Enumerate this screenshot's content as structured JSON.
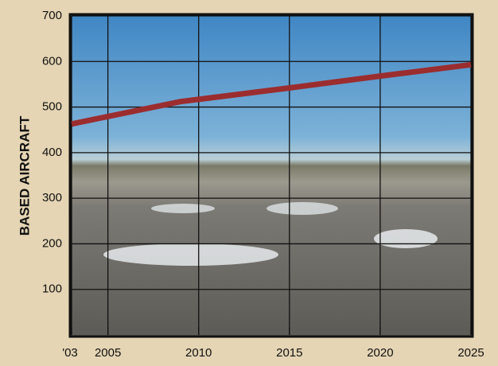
{
  "chart_data": {
    "type": "line",
    "y_label": "BASED AIRCRAFT",
    "x": [
      2003,
      2009,
      2015,
      2020,
      2025
    ],
    "series": [
      {
        "color": "#9b2d2f",
        "values": [
          463,
          512,
          542,
          568,
          593
        ]
      }
    ],
    "xlim": [
      2003,
      2025
    ],
    "xticks": [
      {
        "value": 2003,
        "label": "'03"
      },
      2005,
      2010,
      2015,
      2020,
      2025
    ],
    "ylim": [
      0,
      700
    ],
    "yticks": [
      100,
      200,
      300,
      400,
      500,
      600,
      700
    ],
    "grid": true
  }
}
